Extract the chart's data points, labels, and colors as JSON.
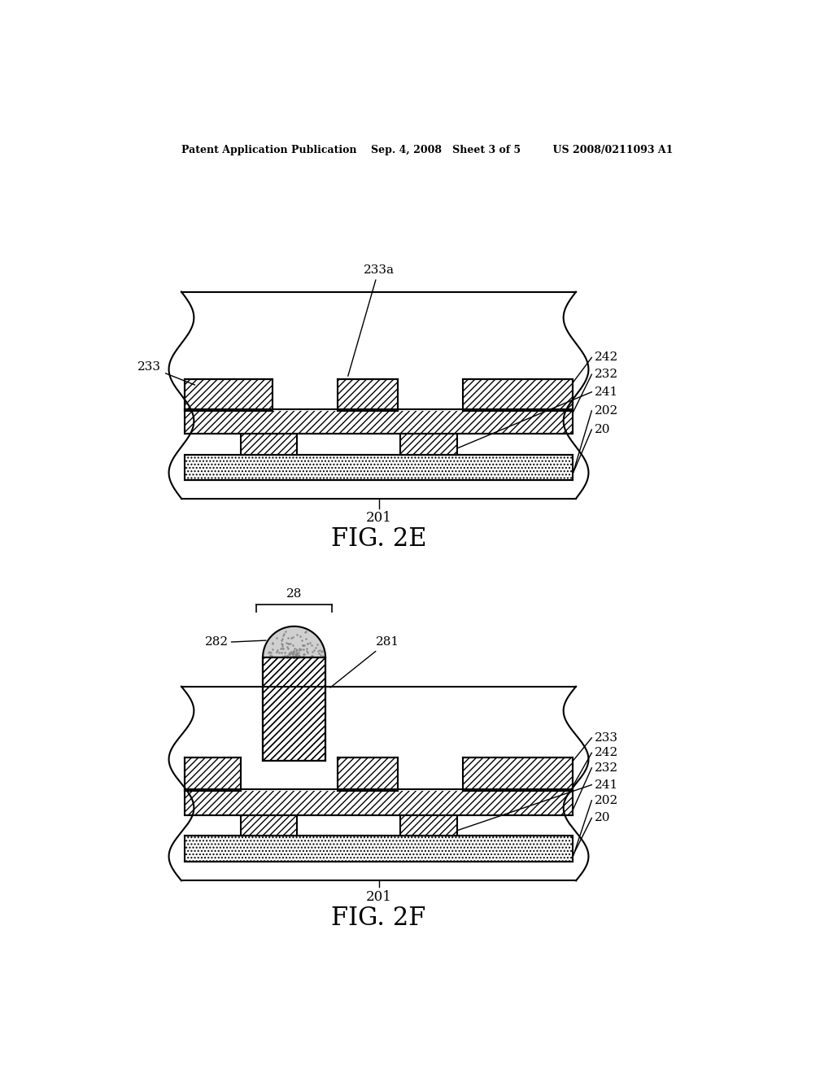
{
  "bg": "#ffffff",
  "lc": "#000000",
  "header": "Patent Application Publication    Sep. 4, 2008   Sheet 3 of 5         US 2008/0211093 A1",
  "fig2e_title": "FIG. 2E",
  "fig2f_title": "FIG. 2F"
}
